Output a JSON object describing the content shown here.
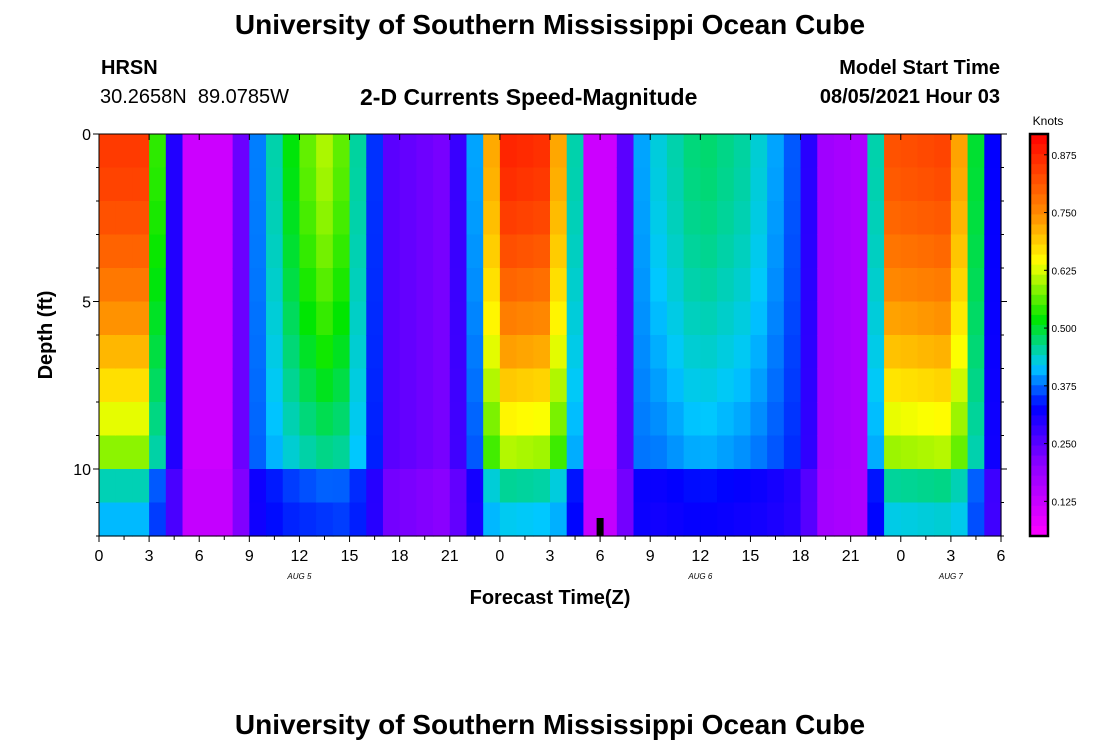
{
  "header": {
    "title": "University of Southern Mississippi Ocean Cube",
    "station": "HRSN",
    "coords": "30.2658N  89.0785W",
    "subtitle": "2-D Currents Speed-Magnitude",
    "model_label": "Model Start Time",
    "model_time": "08/05/2021 Hour 03"
  },
  "footer": {
    "title": "University of Southern Mississippi Ocean Cube"
  },
  "chart_data": {
    "type": "heatmap",
    "title": "2-D Currents Speed-Magnitude",
    "xlabel": "Forecast Time(Z)",
    "ylabel": "Depth (ft)",
    "x_hours_range": [
      0,
      54
    ],
    "ylim": [
      0,
      12
    ],
    "y_inverted": true,
    "x_tick_labels": [
      "0",
      "3",
      "6",
      "9",
      "12",
      "15",
      "18",
      "21",
      "0",
      "3",
      "6",
      "9",
      "12",
      "15",
      "18",
      "21",
      "0",
      "3",
      "6"
    ],
    "y_ticks": [
      0,
      5,
      10
    ],
    "y_tick_labels": [
      "0",
      "5",
      "10"
    ],
    "day_labels": [
      {
        "hour": 12,
        "label": "AUG 5"
      },
      {
        "hour": 36,
        "label": "AUG 6"
      },
      {
        "hour": 51,
        "label": "AUG 7"
      }
    ],
    "current_time_marker_hour": 30,
    "colorbar": {
      "unit": "Knots",
      "range": [
        0.05,
        0.92
      ],
      "ticks": [
        0.125,
        0.25,
        0.375,
        0.5,
        0.625,
        0.75,
        0.875
      ],
      "tick_labels": [
        "0.125",
        "0.250",
        "0.375",
        "0.500",
        "0.625",
        "0.750",
        "0.875"
      ]
    },
    "depth_rows": 12,
    "time_control_points": {
      "hours": [
        0,
        2.5,
        3.8,
        4.5,
        5.5,
        8,
        9,
        12,
        14,
        16,
        17.5,
        21,
        22.5,
        24,
        27,
        28.5,
        29.5,
        31,
        32,
        33,
        36,
        39,
        42,
        43.5,
        45.5,
        46.5,
        47.5,
        51,
        52.5,
        54
      ],
      "surface_speed": [
        0.85,
        0.85,
        0.45,
        0.3,
        0.12,
        0.12,
        0.35,
        0.55,
        0.62,
        0.4,
        0.25,
        0.22,
        0.4,
        0.88,
        0.86,
        0.45,
        0.12,
        0.12,
        0.38,
        0.42,
        0.48,
        0.45,
        0.35,
        0.18,
        0.16,
        0.45,
        0.82,
        0.84,
        0.5,
        0.24
      ],
      "depth_attenuation": [
        0.55,
        0.55,
        0.82,
        1.0,
        1.0,
        1.0,
        1.0,
        0.72,
        0.65,
        0.95,
        1.0,
        1.0,
        0.88,
        0.55,
        0.55,
        0.85,
        1.0,
        1.0,
        1.0,
        0.85,
        0.78,
        0.8,
        0.95,
        1.0,
        1.0,
        0.85,
        0.6,
        0.6,
        0.85,
        1.0
      ]
    }
  }
}
